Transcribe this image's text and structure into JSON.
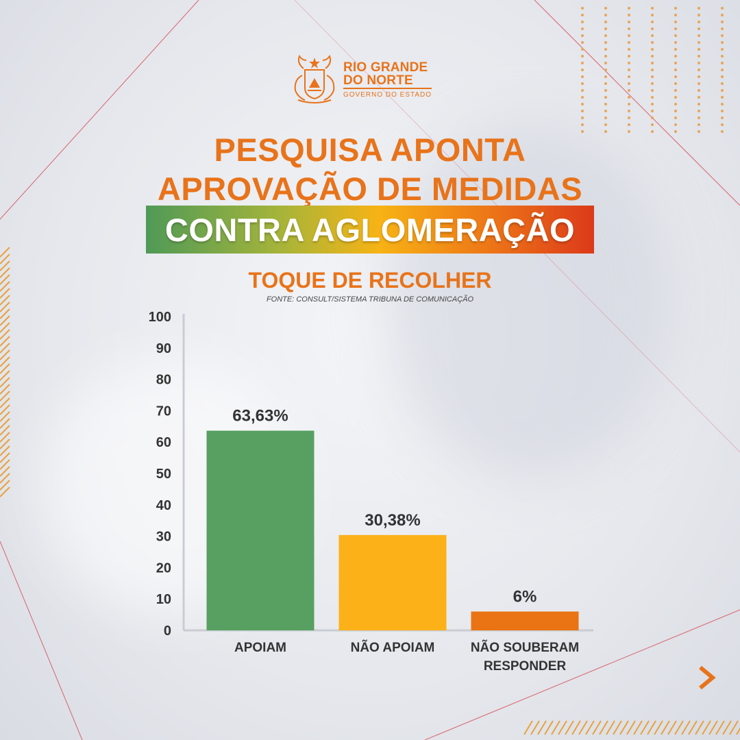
{
  "logo": {
    "line1": "RIO GRANDE",
    "line2": "DO NORTE",
    "line3": "GOVERNO DO ESTADO",
    "icon": "coat-of-arms-icon"
  },
  "headline": {
    "line1": "PESQUISA APONTA",
    "line2": "APROVAÇÃO DE MEDIDAS",
    "banner": "CONTRA AGLOMERAÇÃO"
  },
  "subtitle": "TOQUE DE RECOLHER",
  "source": "FONTE: CONSULT/SISTEMA TRIBUNA DE COMUNICAÇÃO",
  "colors": {
    "accent": "#e8731a",
    "bar_green": "#58a061",
    "bar_yellow": "#fbb117",
    "bar_orange": "#ea7413",
    "text_dark": "#333333"
  },
  "nav": {
    "next_icon": "chevron-right-icon"
  },
  "chart_data": {
    "type": "bar",
    "categories": [
      [
        "APOIAM"
      ],
      [
        "NÃO APOIAM"
      ],
      [
        "NÃO SOUBERAM",
        "RESPONDER"
      ]
    ],
    "values": [
      63.63,
      30.38,
      6
    ],
    "value_labels": [
      "63,63%",
      "30,38%",
      "6%"
    ],
    "bar_colors": [
      "#58a061",
      "#fbb117",
      "#ea7413"
    ],
    "ylim": [
      0,
      100
    ],
    "yticks": [
      "0",
      "10",
      "20",
      "30",
      "40",
      "50",
      "60",
      "70",
      "80",
      "90",
      "100"
    ],
    "grid": false
  }
}
